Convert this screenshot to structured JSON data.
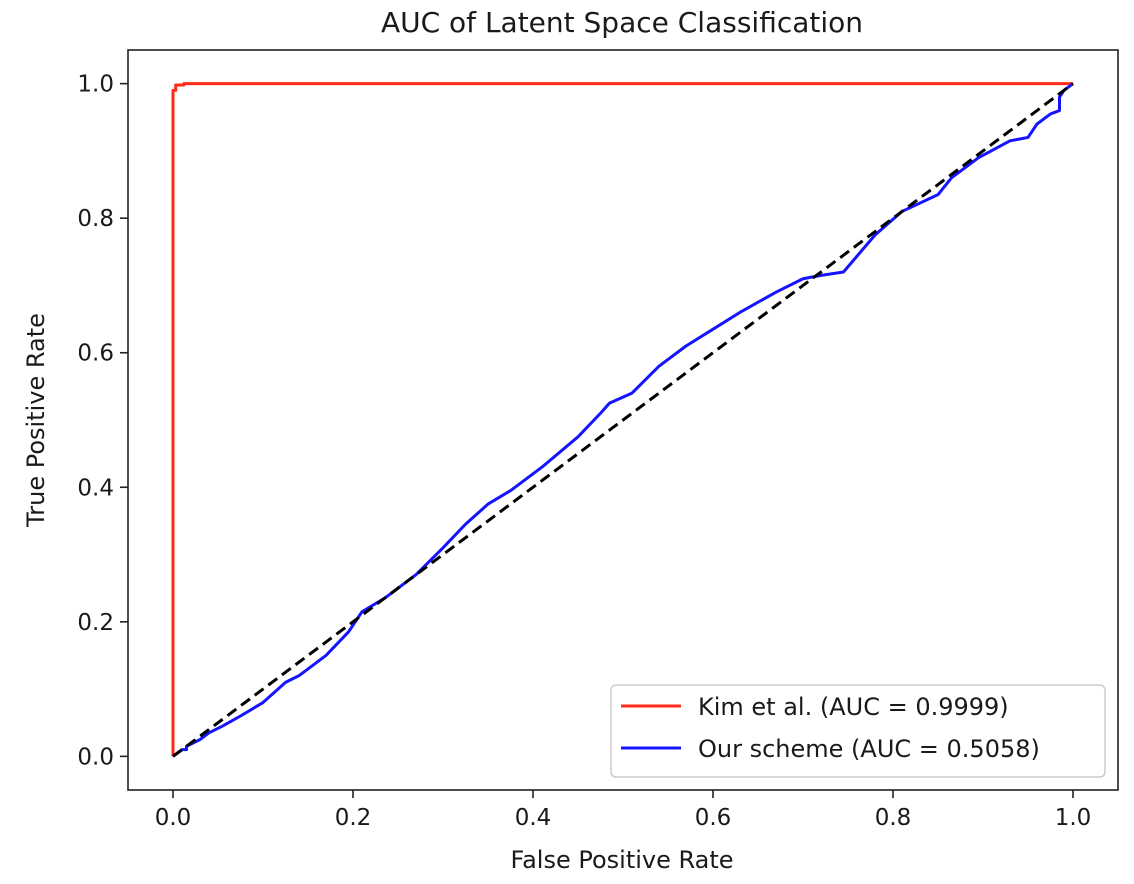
{
  "chart_data": {
    "type": "line",
    "title": "AUC of Latent Space Classification",
    "xlabel": "False Positive Rate",
    "ylabel": "True Positive Rate",
    "xlim": [
      -0.05,
      1.05
    ],
    "ylim": [
      -0.05,
      1.05
    ],
    "x_ticks": [
      0.0,
      0.2,
      0.4,
      0.6,
      0.8,
      1.0
    ],
    "x_tick_labels": [
      "0.0",
      "0.2",
      "0.4",
      "0.6",
      "0.8",
      "1.0"
    ],
    "y_ticks": [
      0.0,
      0.2,
      0.4,
      0.6,
      0.8,
      1.0
    ],
    "y_tick_labels": [
      "0.0",
      "0.2",
      "0.4",
      "0.6",
      "0.8",
      "1.0"
    ],
    "grid": false,
    "legend_position": "lower right",
    "series": [
      {
        "name": "Kim et al. (AUC = 0.9999)",
        "color": "#ff2a1a",
        "style": "solid",
        "x": [
          0.0,
          0.0,
          0.0,
          0.0,
          0.003,
          0.003,
          0.012,
          0.012,
          1.0
        ],
        "y": [
          0.0,
          0.6,
          0.99,
          0.99,
          0.99,
          0.998,
          0.998,
          1.0,
          1.0
        ]
      },
      {
        "name": "Our scheme (AUC = 0.5058)",
        "color": "#1414ff",
        "style": "solid",
        "x": [
          0.0,
          0.005,
          0.01,
          0.015,
          0.015,
          0.03,
          0.04,
          0.055,
          0.075,
          0.1,
          0.125,
          0.14,
          0.17,
          0.195,
          0.21,
          0.235,
          0.27,
          0.3,
          0.325,
          0.35,
          0.375,
          0.41,
          0.45,
          0.475,
          0.485,
          0.51,
          0.54,
          0.57,
          0.6,
          0.63,
          0.67,
          0.7,
          0.72,
          0.745,
          0.78,
          0.81,
          0.85,
          0.865,
          0.895,
          0.93,
          0.95,
          0.96,
          0.97,
          0.975,
          0.985,
          0.985,
          0.99,
          1.0
        ],
        "y": [
          0.0,
          0.005,
          0.01,
          0.01,
          0.015,
          0.025,
          0.035,
          0.045,
          0.06,
          0.08,
          0.11,
          0.12,
          0.15,
          0.185,
          0.215,
          0.235,
          0.27,
          0.31,
          0.345,
          0.375,
          0.395,
          0.43,
          0.475,
          0.51,
          0.525,
          0.54,
          0.58,
          0.61,
          0.635,
          0.66,
          0.69,
          0.71,
          0.715,
          0.72,
          0.775,
          0.81,
          0.835,
          0.86,
          0.89,
          0.915,
          0.92,
          0.94,
          0.95,
          0.955,
          0.96,
          0.98,
          0.99,
          1.0
        ]
      },
      {
        "name": "",
        "color": "#000000",
        "style": "dashed",
        "x": [
          0.0,
          1.0
        ],
        "y": [
          0.0,
          1.0
        ]
      }
    ]
  }
}
